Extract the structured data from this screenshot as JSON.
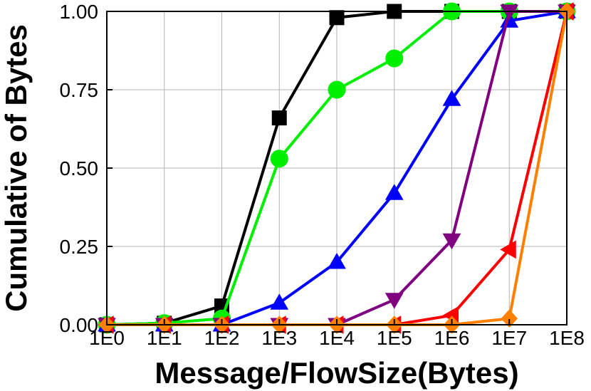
{
  "chart_data": {
    "type": "line",
    "xlabel": "Message/FlowSize(Bytes)",
    "ylabel": "Cumulative of Bytes",
    "x_scale": "log",
    "x_ticks": [
      "1E0",
      "1E1",
      "1E2",
      "1E3",
      "1E4",
      "1E5",
      "1E6",
      "1E7",
      "1E8"
    ],
    "y_ticks": [
      "0.00",
      "0.25",
      "0.50",
      "0.75",
      "1.00"
    ],
    "xlim": [
      1,
      100000000
    ],
    "ylim": [
      0,
      1
    ],
    "grid": true,
    "x": [
      1,
      10,
      100,
      1000,
      10000,
      100000,
      1000000,
      10000000,
      100000000
    ],
    "series": [
      {
        "color": "#000000",
        "marker": "square",
        "values": [
          0.0,
          0.005,
          0.06,
          0.66,
          0.98,
          1.0,
          1.0,
          1.0,
          1.0
        ]
      },
      {
        "color": "#00ee00",
        "marker": "circle",
        "values": [
          0.0,
          0.005,
          0.02,
          0.53,
          0.75,
          0.85,
          1.0,
          1.0,
          1.0
        ]
      },
      {
        "color": "#0000ff",
        "marker": "triangle-up",
        "values": [
          0.0,
          0.0,
          0.0,
          0.07,
          0.2,
          0.42,
          0.72,
          0.97,
          1.0
        ]
      },
      {
        "color": "#800080",
        "marker": "triangle-down",
        "values": [
          0.0,
          0.0,
          0.0,
          0.0,
          0.0,
          0.08,
          0.27,
          1.0,
          1.0
        ]
      },
      {
        "color": "#ff0000",
        "marker": "triangle-left",
        "values": [
          0.0,
          0.0,
          0.0,
          0.0,
          0.0,
          0.0,
          0.03,
          0.24,
          1.0
        ]
      },
      {
        "color": "#ff8000",
        "marker": "diamond",
        "values": [
          0.0,
          0.0,
          0.0,
          0.0,
          0.0,
          0.0,
          0.0,
          0.02,
          1.0
        ]
      }
    ]
  }
}
